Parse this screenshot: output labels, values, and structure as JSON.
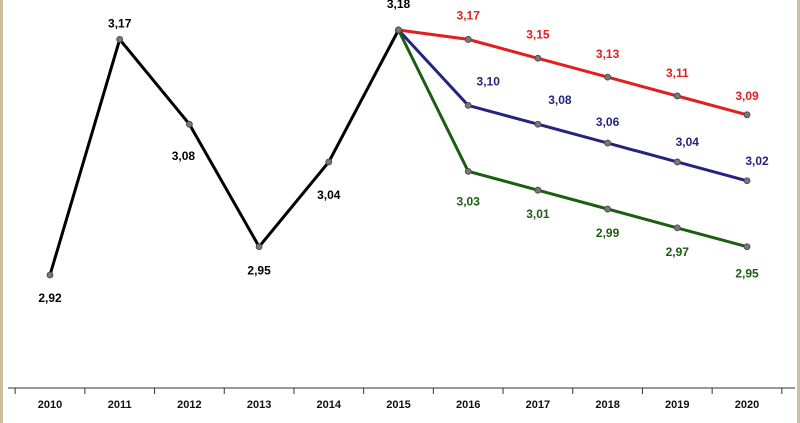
{
  "chart_data": {
    "type": "line",
    "title": "",
    "xlabel": "",
    "ylabel": "",
    "x": [
      "2010",
      "2011",
      "2012",
      "2013",
      "2014",
      "2015",
      "2016",
      "2017",
      "2018",
      "2019",
      "2020"
    ],
    "ylim": [
      2.9,
      3.2
    ],
    "grid": false,
    "legend": "none",
    "series": [
      {
        "key": "historical",
        "color": "#000000",
        "points": [
          {
            "x": "2010",
            "y": 2.92,
            "label": "2,92"
          },
          {
            "x": "2011",
            "y": 3.17,
            "label": "3,17"
          },
          {
            "x": "2012",
            "y": 3.08,
            "label": "3,08"
          },
          {
            "x": "2013",
            "y": 2.95,
            "label": "2,95"
          },
          {
            "x": "2014",
            "y": 3.04,
            "label": "3,04"
          },
          {
            "x": "2015",
            "y": 3.18,
            "label": "3,18"
          }
        ]
      },
      {
        "key": "high",
        "color": "#e31e1e",
        "points": [
          {
            "x": "2015",
            "y": 3.18,
            "label": ""
          },
          {
            "x": "2016",
            "y": 3.17,
            "label": "3,17"
          },
          {
            "x": "2017",
            "y": 3.15,
            "label": "3,15"
          },
          {
            "x": "2018",
            "y": 3.13,
            "label": "3,13"
          },
          {
            "x": "2019",
            "y": 3.11,
            "label": "3,11"
          },
          {
            "x": "2020",
            "y": 3.09,
            "label": "3,09"
          }
        ]
      },
      {
        "key": "medium",
        "color": "#24247f",
        "points": [
          {
            "x": "2015",
            "y": 3.18,
            "label": ""
          },
          {
            "x": "2016",
            "y": 3.1,
            "label": "3,10"
          },
          {
            "x": "2017",
            "y": 3.08,
            "label": "3,08"
          },
          {
            "x": "2018",
            "y": 3.06,
            "label": "3,06"
          },
          {
            "x": "2019",
            "y": 3.04,
            "label": "3,04"
          },
          {
            "x": "2020",
            "y": 3.02,
            "label": "3,02"
          }
        ]
      },
      {
        "key": "low",
        "color": "#1b5e12",
        "points": [
          {
            "x": "2015",
            "y": 3.18,
            "label": ""
          },
          {
            "x": "2016",
            "y": 3.03,
            "label": "3,03"
          },
          {
            "x": "2017",
            "y": 3.01,
            "label": "3,01"
          },
          {
            "x": "2018",
            "y": 2.99,
            "label": "2,99"
          },
          {
            "x": "2019",
            "y": 2.97,
            "label": "2,97"
          },
          {
            "x": "2020",
            "y": 2.95,
            "label": "2,95"
          }
        ]
      }
    ]
  }
}
